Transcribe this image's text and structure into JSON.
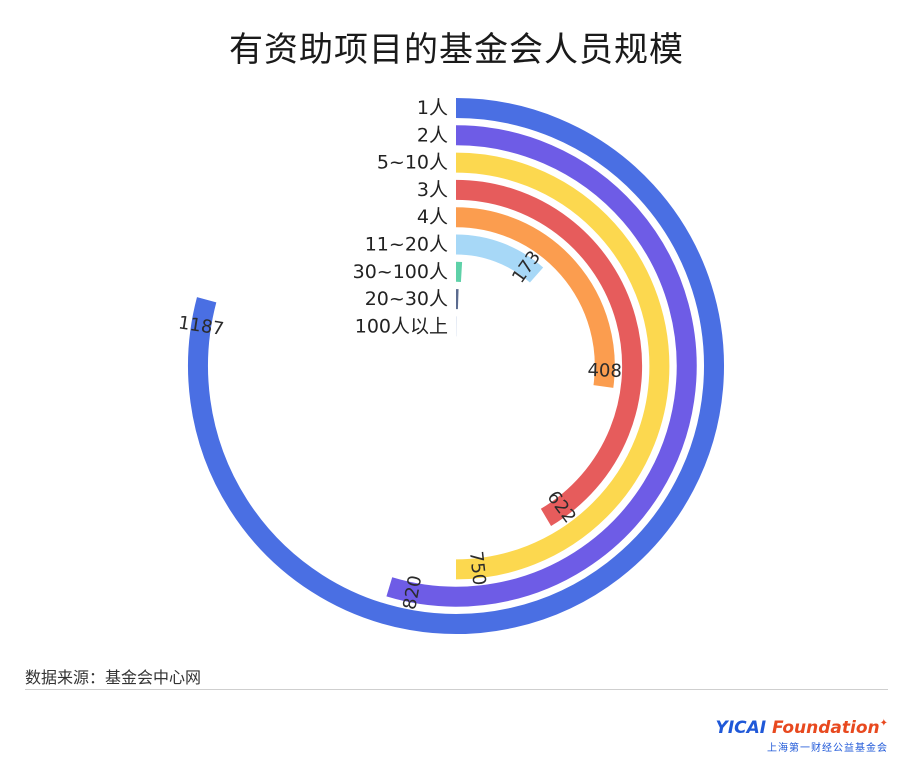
{
  "title": "有资助项目的基金会人员规模",
  "source": "数据来源：基金会中心网",
  "logo": {
    "main_prefix": "YICAI ",
    "main_accent": "Foundation",
    "sub": "上海第一财经公益基金会"
  },
  "chart_data": {
    "type": "radial_bar",
    "title": "有资助项目的基金会人员规模",
    "max_value": 1500,
    "categories": [
      "1人",
      "2人",
      "5~10人",
      "3人",
      "4人",
      "11~20人",
      "30~100人",
      "20~30人",
      "100人以上"
    ],
    "values": [
      1187,
      820,
      750,
      622,
      408,
      173,
      14,
      8,
      2
    ],
    "value_labels": [
      "1187",
      "820",
      "750",
      "622",
      "408",
      "173",
      "",
      "",
      ""
    ],
    "colors": [
      "#4a6fe3",
      "#6e5ce6",
      "#fcd84f",
      "#e65c5c",
      "#fb9d4f",
      "#a7d8f7",
      "#5ed1a8",
      "#5b6b8f",
      "#dfe6f2"
    ]
  }
}
